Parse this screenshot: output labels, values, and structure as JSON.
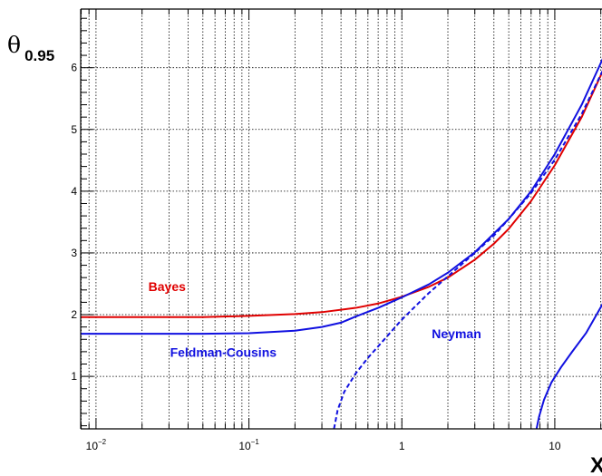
{
  "chart_data": {
    "type": "line",
    "x_scale": "log",
    "xlim": [
      0.00794,
      21.8
    ],
    "ylim": [
      0.15,
      6.95
    ],
    "xlabel": "X",
    "ylabel": {
      "symbol": "θ",
      "subscript": "0.95"
    },
    "grid": true,
    "x_ticks": [
      {
        "value": 0.01,
        "base": "10",
        "exp": "−2"
      },
      {
        "value": 0.1,
        "base": "10",
        "exp": "−1"
      },
      {
        "value": 1,
        "base": "1",
        "exp": ""
      },
      {
        "value": 10,
        "base": "10",
        "exp": ""
      }
    ],
    "y_ticks": [
      1,
      2,
      3,
      4,
      5,
      6
    ],
    "series": [
      {
        "name": "Bayes",
        "color": "#e00000",
        "dash": "solid",
        "x": [
          0.008,
          0.05,
          0.1,
          0.2,
          0.3,
          0.5,
          0.7,
          1.0,
          1.5,
          2.0,
          3.0,
          4.0,
          5.0,
          7.0,
          10.0,
          15.0,
          22.0
        ],
        "y": [
          1.96,
          1.96,
          1.98,
          2.01,
          2.04,
          2.11,
          2.18,
          2.29,
          2.45,
          2.6,
          2.89,
          3.15,
          3.39,
          3.84,
          4.42,
          5.2,
          6.1
        ]
      },
      {
        "name": "Feldman-Cousins",
        "color": "#1010e0",
        "dash": "solid",
        "x": [
          0.008,
          0.05,
          0.1,
          0.2,
          0.3,
          0.4,
          0.5,
          0.7,
          1.0,
          1.5,
          2.0,
          3.0,
          5.0,
          7.0,
          10.0,
          15.0,
          22.0
        ],
        "y": [
          1.69,
          1.69,
          1.7,
          1.74,
          1.8,
          1.87,
          1.97,
          2.11,
          2.28,
          2.49,
          2.68,
          3.01,
          3.55,
          4.0,
          4.6,
          5.4,
          6.3
        ]
      },
      {
        "name": "Feldman-Cousins",
        "color": "#1010e0",
        "dash": "solid",
        "x": [
          7.6,
          7.9,
          8.5,
          9.5,
          11.0,
          13.0,
          16.0,
          22.0
        ],
        "y": [
          0.15,
          0.35,
          0.62,
          0.9,
          1.15,
          1.4,
          1.7,
          2.3
        ]
      },
      {
        "name": "Neyman",
        "color": "#1010e0",
        "dash": "dashed",
        "x": [
          0.36,
          0.38,
          0.42,
          0.5,
          0.6,
          0.75,
          1.0,
          1.5,
          2.0,
          3.0,
          4.0,
          5.0,
          7.0,
          10.0,
          15.0,
          22.0
        ],
        "y": [
          0.15,
          0.45,
          0.75,
          1.05,
          1.3,
          1.57,
          1.92,
          2.35,
          2.62,
          3.0,
          3.28,
          3.55,
          3.97,
          4.51,
          5.25,
          6.1
        ]
      }
    ],
    "annotations": [
      {
        "text": "Bayes",
        "color": "#e00000",
        "x": 0.022,
        "y": 2.38
      },
      {
        "text": "Feldman-Cousins",
        "color": "#1010e0",
        "x": 0.0305,
        "y": 1.32
      },
      {
        "text": "Neyman",
        "color": "#1010e0",
        "x": 1.57,
        "y": 1.62
      }
    ]
  }
}
